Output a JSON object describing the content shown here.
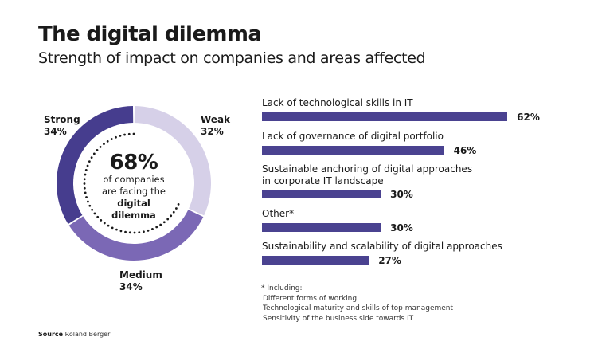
{
  "header": {
    "title": "The digital dilemma",
    "subtitle": "Strength of impact on companies and areas affected"
  },
  "colors": {
    "strong": "#463d8e",
    "medium": "#7b68b5",
    "weak": "#d6d0e8",
    "bar": "#4a4290",
    "dots": "#1a1a1a"
  },
  "chart_data": [
    {
      "type": "pie",
      "variant": "donut",
      "title": "Strength of impact on companies",
      "categories": [
        "Weak",
        "Medium",
        "Strong"
      ],
      "values": [
        32,
        34,
        34
      ],
      "labels": [
        "Weak\n32%",
        "Medium\n34%",
        "Strong\n34%"
      ],
      "center_annotation": {
        "value": "68%",
        "text_lines": [
          "of companies",
          "are facing the"
        ],
        "bold_lines": [
          "digital",
          "dilemma"
        ]
      },
      "highlight_share": 68
    },
    {
      "type": "bar",
      "orientation": "horizontal",
      "title": "Areas affected",
      "categories": [
        "Lack of technological skills in IT",
        "Lack of governance of digital portfolio",
        "Sustainable anchoring of digital approaches in corporate IT landscape",
        "Other*",
        "Sustainability and scalability of digital approaches"
      ],
      "values": [
        62,
        46,
        30,
        30,
        27
      ],
      "value_labels": [
        "62%",
        "46%",
        "30%",
        "30%",
        "27%"
      ],
      "unit": "%",
      "xlim": [
        0,
        100
      ]
    }
  ],
  "donut_labels": {
    "strong": {
      "name": "Strong",
      "value": "34%"
    },
    "weak": {
      "name": "Weak",
      "value": "32%"
    },
    "medium": {
      "name": "Medium",
      "value": "34%"
    }
  },
  "center": {
    "big": "68%",
    "line1": "of companies",
    "line2": "are facing the",
    "line3": "digital",
    "line4": "dilemma"
  },
  "bars": [
    {
      "label_lines": [
        "Lack of technological skills in IT"
      ],
      "value": 62,
      "value_label": "62%"
    },
    {
      "label_lines": [
        "Lack of governance of digital portfolio"
      ],
      "value": 46,
      "value_label": "46%"
    },
    {
      "label_lines": [
        "Sustainable anchoring of digital approaches",
        "in corporate IT landscape"
      ],
      "value": 30,
      "value_label": "30%"
    },
    {
      "label_lines": [
        "Other*"
      ],
      "value": 30,
      "value_label": "30%"
    },
    {
      "label_lines": [
        "Sustainability and scalability of digital approaches"
      ],
      "value": 27,
      "value_label": "27%"
    }
  ],
  "footnote": {
    "heading": "* Including:",
    "items": [
      "Different forms of working",
      "Technological maturity and skills of top management",
      "Sensitivity of the business side towards IT"
    ]
  },
  "source": {
    "label": "Source",
    "text": "Roland Berger"
  }
}
